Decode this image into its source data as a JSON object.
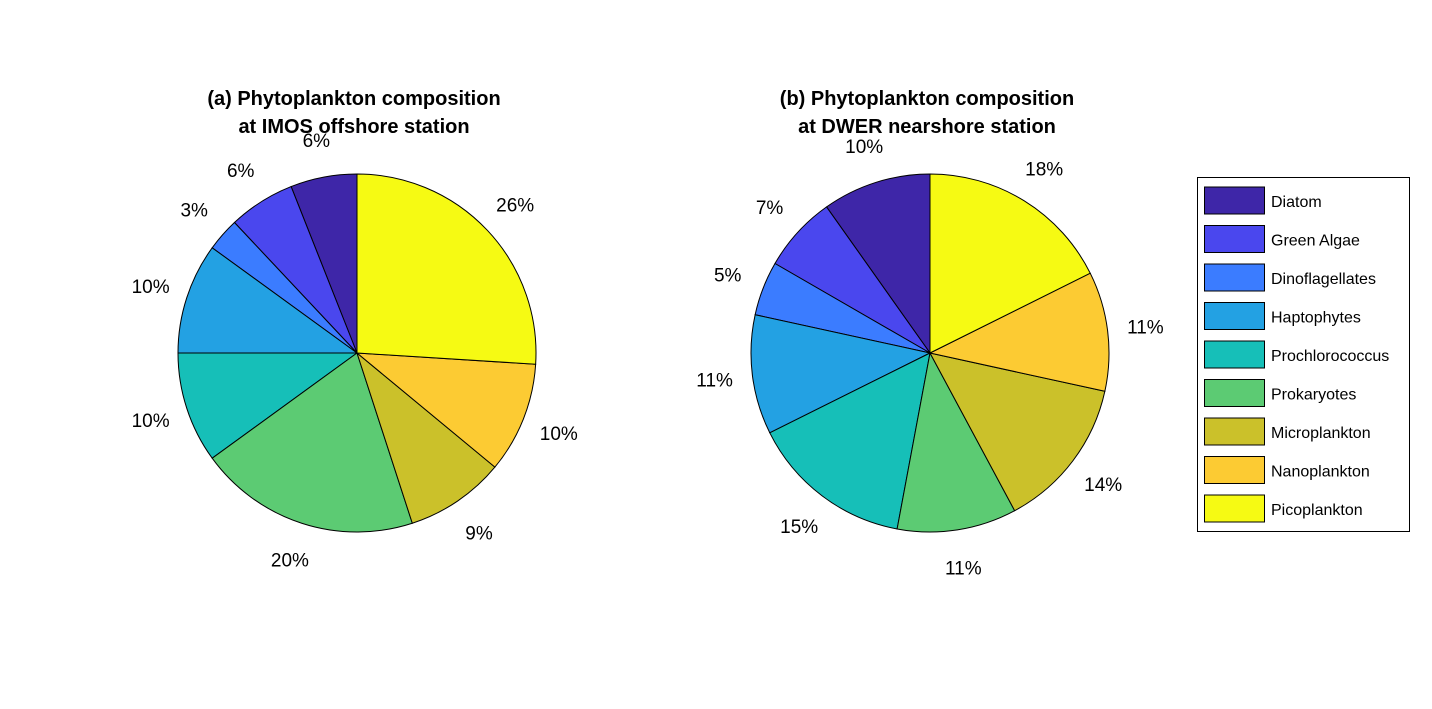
{
  "legend": {
    "items": [
      {
        "label": "Diatom",
        "color": "#3e26a8"
      },
      {
        "label": "Green Algae",
        "color": "#4a47ee"
      },
      {
        "label": "Dinoflagellates",
        "color": "#3b7cff"
      },
      {
        "label": "Haptophytes",
        "color": "#23a1e3"
      },
      {
        "label": "Prochlorococcus",
        "color": "#16bfb8"
      },
      {
        "label": "Prokaryotes",
        "color": "#5ccb73"
      },
      {
        "label": "Microplankton",
        "color": "#cbc12a"
      },
      {
        "label": "Nanoplankton",
        "color": "#fccb33"
      },
      {
        "label": "Picoplankton",
        "color": "#f6fa13"
      }
    ]
  },
  "chart_data": [
    {
      "type": "pie",
      "title": "(a) Phytoplankton composition\nat IMOS offshore station",
      "categories": [
        "Diatom",
        "Green Algae",
        "Dinoflagellates",
        "Haptophytes",
        "Prochlorococcus",
        "Prokaryotes",
        "Microplankton",
        "Nanoplankton",
        "Picoplankton"
      ],
      "values": [
        6,
        6,
        3,
        10,
        10,
        20,
        9,
        10,
        26
      ],
      "labels": [
        "6%",
        "6%",
        "3%",
        "10%",
        "10%",
        "20%",
        "9%",
        "10%",
        "26%"
      ],
      "legend": "right"
    },
    {
      "type": "pie",
      "title": "(b) Phytoplankton composition\nat DWER nearshore station",
      "categories": [
        "Diatom",
        "Green Algae",
        "Dinoflagellates",
        "Haptophytes",
        "Prochlorococcus",
        "Prokaryotes",
        "Microplankton",
        "Nanoplankton",
        "Picoplankton"
      ],
      "values": [
        10,
        7,
        5,
        11,
        15,
        11,
        14,
        11,
        18
      ],
      "labels": [
        "10%",
        "7%",
        "5%",
        "11%",
        "15%",
        "11%",
        "14%",
        "11%",
        "18%"
      ],
      "legend": "right"
    }
  ]
}
